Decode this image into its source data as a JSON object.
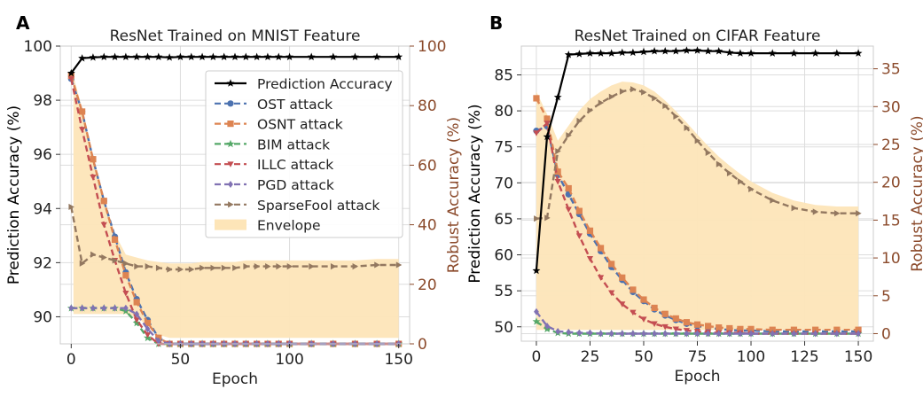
{
  "colors": {
    "accuracy": "#000000",
    "robust_axis": "#8b4a2b",
    "envelope": "#fde5b8",
    "grid": "#dddddd",
    "OST attack": "#4c72b0",
    "OSNT attack": "#dd8452",
    "BIM attack": "#55a868",
    "ILLC attack": "#c44e52",
    "PGD attack": "#8172b3",
    "SparseFool attack": "#937860"
  },
  "chart_data": [
    {
      "panel_label": "A",
      "type": "line",
      "title": "ResNet Trained on MNIST Feature",
      "xlabel": "Epoch",
      "ylabel": "Prediction Accuracy (%)",
      "y2label": "Robust Accuracy (%)",
      "xlim": [
        -5,
        155
      ],
      "ylim": [
        89,
        100
      ],
      "y2lim": [
        0,
        100
      ],
      "xticks": [
        0,
        50,
        100,
        150
      ],
      "yticks": [
        90,
        92,
        94,
        96,
        98,
        100
      ],
      "y2ticks": [
        0,
        20,
        40,
        60,
        80,
        100
      ],
      "legend": "upper-right",
      "grid": true,
      "accuracy": {
        "name": "Prediction Accuracy",
        "x": [
          0,
          5,
          10,
          15,
          20,
          25,
          30,
          35,
          40,
          45,
          50,
          55,
          60,
          65,
          70,
          75,
          80,
          85,
          90,
          95,
          100,
          110,
          120,
          130,
          140,
          150
        ],
        "values": [
          99.0,
          99.55,
          99.58,
          99.6,
          99.6,
          99.6,
          99.6,
          99.6,
          99.6,
          99.58,
          99.6,
          99.6,
          99.6,
          99.6,
          99.6,
          99.6,
          99.6,
          99.6,
          99.6,
          99.6,
          99.6,
          99.6,
          99.6,
          99.6,
          99.6,
          99.6
        ]
      },
      "series": [
        {
          "name": "OST attack",
          "marker": "circle",
          "x": [
            0,
            5,
            10,
            15,
            20,
            25,
            30,
            35,
            40,
            45,
            50,
            55,
            60,
            65,
            70,
            75,
            80,
            85,
            90,
            95,
            100,
            110,
            120,
            130,
            140,
            150
          ],
          "values": [
            89,
            78,
            62,
            48,
            36,
            24,
            15,
            8,
            2,
            0,
            0,
            0,
            0,
            0,
            0,
            0,
            0,
            0,
            0,
            0,
            0,
            0,
            0,
            0,
            0,
            0
          ]
        },
        {
          "name": "OSNT attack",
          "marker": "square",
          "x": [
            0,
            5,
            10,
            15,
            20,
            25,
            30,
            35,
            40,
            45,
            50,
            55,
            60,
            65,
            70,
            75,
            80,
            85,
            90,
            95,
            100,
            110,
            120,
            130,
            140,
            150
          ],
          "values": [
            90,
            78,
            62,
            48,
            35,
            23,
            14,
            7,
            2,
            0,
            0,
            0,
            0,
            0,
            0,
            0,
            0,
            0,
            0,
            0,
            0,
            0,
            0,
            0,
            0,
            0
          ]
        },
        {
          "name": "BIM attack",
          "marker": "star",
          "x": [
            0,
            5,
            10,
            15,
            20,
            25,
            30,
            35,
            40,
            45,
            50,
            55,
            60,
            65,
            70,
            75,
            80,
            85,
            90,
            95,
            100,
            110,
            120,
            130,
            140,
            150
          ],
          "values": [
            12,
            12,
            12,
            12,
            12,
            11,
            7,
            2,
            0,
            0,
            0,
            0,
            0,
            0,
            0,
            0,
            0,
            0,
            0,
            0,
            0,
            0,
            0,
            0,
            0,
            0
          ]
        },
        {
          "name": "ILLC attack",
          "marker": "triangle-down",
          "x": [
            0,
            5,
            10,
            15,
            20,
            25,
            30,
            35,
            40,
            45,
            50,
            55,
            60,
            65,
            70,
            75,
            80,
            85,
            90,
            95,
            100,
            110,
            120,
            130,
            140,
            150
          ],
          "values": [
            89,
            72,
            56,
            40,
            28,
            17,
            8,
            3,
            0,
            0,
            0,
            0,
            0,
            0,
            0,
            0,
            0,
            0,
            0,
            0,
            0,
            0,
            0,
            0,
            0,
            0
          ]
        },
        {
          "name": "PGD attack",
          "marker": "diamond",
          "x": [
            0,
            5,
            10,
            15,
            20,
            25,
            30,
            35,
            40,
            45,
            50,
            55,
            60,
            65,
            70,
            75,
            80,
            85,
            90,
            95,
            100,
            110,
            120,
            130,
            140,
            150
          ],
          "values": [
            12,
            12,
            12,
            12,
            12,
            12,
            10,
            5,
            1,
            0,
            0,
            0,
            0,
            0,
            0,
            0,
            0,
            0,
            0,
            0,
            0,
            0,
            0,
            0,
            0,
            0
          ]
        },
        {
          "name": "SparseFool attack",
          "marker": "triangle-right",
          "x": [
            0,
            5,
            10,
            15,
            20,
            25,
            30,
            35,
            40,
            45,
            50,
            55,
            60,
            65,
            70,
            75,
            80,
            85,
            90,
            95,
            100,
            110,
            120,
            130,
            140,
            150
          ],
          "values": [
            46,
            27,
            30,
            29,
            28,
            27,
            26,
            26,
            25.5,
            25,
            25,
            25,
            25.5,
            25.5,
            25.5,
            25.5,
            26,
            26,
            26,
            26,
            26,
            26,
            26,
            26,
            26.5,
            26.5
          ]
        }
      ],
      "envelope": {
        "name": "Envelope",
        "x": [
          1,
          5,
          10,
          15,
          20,
          25,
          30,
          35,
          40,
          45,
          50,
          55,
          60,
          65,
          70,
          75,
          80,
          85,
          90,
          95,
          100,
          110,
          120,
          130,
          140,
          150
        ],
        "lower": [
          10,
          10,
          10,
          10,
          10,
          10,
          9,
          6,
          3,
          2,
          2,
          2,
          2,
          2,
          2,
          2,
          2,
          2,
          2,
          2,
          2,
          2,
          2,
          2,
          2,
          2
        ],
        "upper": [
          90,
          79,
          63,
          49,
          37,
          30,
          29,
          28,
          27.5,
          27,
          27,
          27,
          27.5,
          27.5,
          27.5,
          27.5,
          28,
          28,
          28,
          28,
          28,
          28,
          28,
          28,
          28.5,
          28.5
        ]
      }
    },
    {
      "panel_label": "B",
      "type": "line",
      "title": "ResNet Trained on CIFAR Feature",
      "xlabel": "Epoch",
      "ylabel": "Prediction Accuracy (%)",
      "y2label": "Robust Accuracy (%)",
      "xlim": [
        -7,
        157
      ],
      "ylim": [
        48,
        89
      ],
      "y2lim": [
        -1,
        38
      ],
      "xticks": [
        0,
        25,
        50,
        75,
        100,
        125,
        150
      ],
      "yticks": [
        50,
        55,
        60,
        65,
        70,
        75,
        80,
        85
      ],
      "y2ticks": [
        0,
        5,
        10,
        15,
        20,
        25,
        30,
        35
      ],
      "legend": "none",
      "grid": true,
      "accuracy": {
        "name": "Prediction Accuracy",
        "x": [
          0,
          5,
          10,
          15,
          20,
          25,
          30,
          35,
          40,
          45,
          50,
          55,
          60,
          65,
          70,
          75,
          80,
          85,
          90,
          95,
          100,
          110,
          120,
          130,
          140,
          150
        ],
        "values": [
          57.8,
          76.4,
          81.9,
          87.8,
          87.9,
          88.0,
          88.0,
          88.0,
          88.1,
          88.1,
          88.2,
          88.3,
          88.3,
          88.3,
          88.4,
          88.4,
          88.3,
          88.3,
          88.1,
          88.0,
          88.0,
          88.0,
          88.0,
          88.0,
          88.0,
          88.0
        ]
      },
      "series": [
        {
          "name": "OST attack",
          "marker": "circle",
          "x": [
            0,
            5,
            10,
            15,
            20,
            25,
            30,
            35,
            40,
            45,
            50,
            55,
            60,
            65,
            70,
            75,
            80,
            85,
            90,
            95,
            100,
            110,
            120,
            130,
            140,
            150
          ],
          "values": [
            26.8,
            27.4,
            21,
            18.4,
            15.8,
            13.2,
            10.9,
            8.8,
            7.1,
            5.5,
            4.3,
            3.2,
            2.4,
            1.8,
            1.3,
            1.0,
            0.8,
            0.6,
            0.5,
            0.4,
            0.4,
            0.3,
            0.3,
            0.3,
            0.3,
            0.3
          ]
        },
        {
          "name": "OSNT attack",
          "marker": "square",
          "x": [
            0,
            5,
            10,
            15,
            20,
            25,
            30,
            35,
            40,
            45,
            50,
            55,
            60,
            65,
            70,
            75,
            80,
            85,
            90,
            95,
            100,
            110,
            120,
            130,
            140,
            150
          ],
          "values": [
            31.1,
            28.4,
            21.4,
            19.2,
            16.2,
            13.6,
            11.3,
            9.2,
            7.4,
            5.8,
            4.5,
            3.4,
            2.6,
            2.0,
            1.5,
            1.2,
            1.0,
            0.8,
            0.7,
            0.6,
            0.6,
            0.5,
            0.5,
            0.5,
            0.5,
            0.5
          ]
        },
        {
          "name": "BIM attack",
          "marker": "star",
          "x": [
            0,
            5,
            10,
            15,
            20,
            25,
            30,
            35,
            40,
            45,
            50,
            55,
            60,
            65,
            70,
            75,
            80,
            85,
            90,
            95,
            100,
            110,
            120,
            130,
            140,
            150
          ],
          "values": [
            1.6,
            0.6,
            0.1,
            0.0,
            0.0,
            0.0,
            0.0,
            0.0,
            0.0,
            0.0,
            0.0,
            0.0,
            0.0,
            0.0,
            0.0,
            0.0,
            0.0,
            0.0,
            0.0,
            0.0,
            0.0,
            0.0,
            0.0,
            0.0,
            0.0,
            0.0
          ]
        },
        {
          "name": "ILLC attack",
          "marker": "triangle-down",
          "x": [
            0,
            5,
            10,
            15,
            20,
            25,
            30,
            35,
            40,
            45,
            50,
            55,
            60,
            65,
            70,
            75,
            80,
            85,
            90,
            95,
            100,
            110,
            120,
            130,
            140,
            150
          ],
          "values": [
            26.5,
            27.8,
            20.1,
            16.4,
            12.9,
            9.9,
            7.4,
            5.4,
            3.9,
            2.8,
            1.9,
            1.3,
            0.9,
            0.6,
            0.4,
            0.3,
            0.2,
            0.1,
            0.1,
            0.1,
            0.0,
            0.0,
            0.0,
            0.0,
            0.0,
            0.0
          ]
        },
        {
          "name": "PGD attack",
          "marker": "diamond",
          "x": [
            0,
            5,
            10,
            15,
            20,
            25,
            30,
            35,
            40,
            45,
            50,
            55,
            60,
            65,
            70,
            75,
            80,
            85,
            90,
            95,
            100,
            110,
            120,
            130,
            140,
            150
          ],
          "values": [
            2.9,
            1.0,
            0.3,
            0.2,
            0.1,
            0.1,
            0.0,
            0.0,
            0.0,
            0.0,
            0.0,
            0.0,
            0.0,
            0.0,
            0.0,
            0.0,
            0.0,
            0.0,
            0.0,
            0.0,
            0.0,
            0.0,
            0.0,
            0.0,
            0.0,
            0.0
          ]
        },
        {
          "name": "SparseFool attack",
          "marker": "triangle-right",
          "x": [
            0,
            5,
            10,
            15,
            20,
            25,
            30,
            35,
            40,
            45,
            50,
            55,
            60,
            65,
            70,
            75,
            80,
            85,
            90,
            95,
            100,
            110,
            120,
            130,
            140,
            150
          ],
          "values": [
            15.2,
            15.3,
            24.1,
            26.2,
            28.1,
            29.5,
            30.5,
            31.3,
            32.0,
            32.3,
            31.9,
            31.1,
            30.1,
            28.7,
            27.2,
            25.5,
            23.9,
            22.4,
            21.2,
            20.1,
            19.1,
            17.6,
            16.6,
            16.1,
            15.9,
            15.9
          ]
        }
      ],
      "envelope": {
        "name": "Envelope",
        "x": [
          0,
          5,
          10,
          15,
          20,
          25,
          30,
          35,
          40,
          45,
          50,
          55,
          60,
          65,
          70,
          75,
          80,
          85,
          90,
          95,
          100,
          110,
          120,
          130,
          140,
          150
        ],
        "lower": [
          0.5,
          0.5,
          0.5,
          0.5,
          0.5,
          0.5,
          0.5,
          0.5,
          0.5,
          0.5,
          0.5,
          0.5,
          0.5,
          0.5,
          0.5,
          0.5,
          0.5,
          0.5,
          0.5,
          0.5,
          0.5,
          0.5,
          0.5,
          0.5,
          0.5,
          0.5
        ],
        "upper": [
          32.0,
          29.0,
          25.5,
          27.5,
          29.5,
          31.0,
          32.0,
          32.8,
          33.3,
          33.2,
          32.8,
          32.0,
          30.8,
          29.4,
          27.9,
          26.3,
          24.8,
          23.4,
          22.2,
          21.1,
          20.1,
          18.6,
          17.6,
          17.0,
          16.8,
          16.8
        ]
      }
    }
  ]
}
